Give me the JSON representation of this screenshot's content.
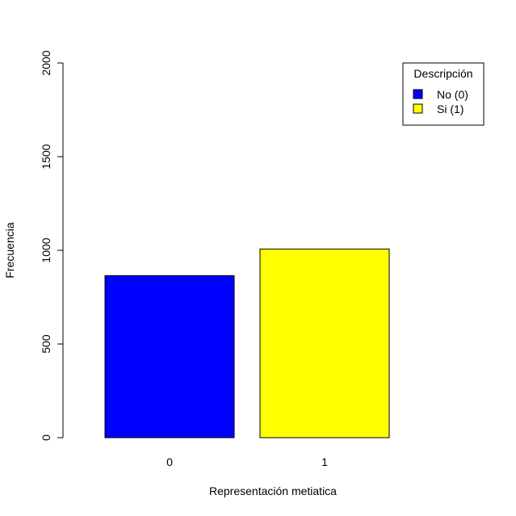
{
  "chart_data": {
    "type": "bar",
    "categories": [
      "0",
      "1"
    ],
    "values": [
      865,
      1007
    ],
    "colors": [
      "#0000ff",
      "#ffff00"
    ],
    "title": "",
    "xlabel": "Representación metiatica",
    "ylabel": "Frecuencia",
    "ylim": [
      0,
      2000
    ],
    "yticks": [
      0,
      500,
      1000,
      1500,
      2000
    ],
    "grid": false,
    "legend": {
      "title": "Descripción",
      "placement": "top-right",
      "items": [
        {
          "label": "No (0)",
          "color": "#0000ff"
        },
        {
          "label": "Si (1)",
          "color": "#ffff00"
        }
      ]
    }
  }
}
